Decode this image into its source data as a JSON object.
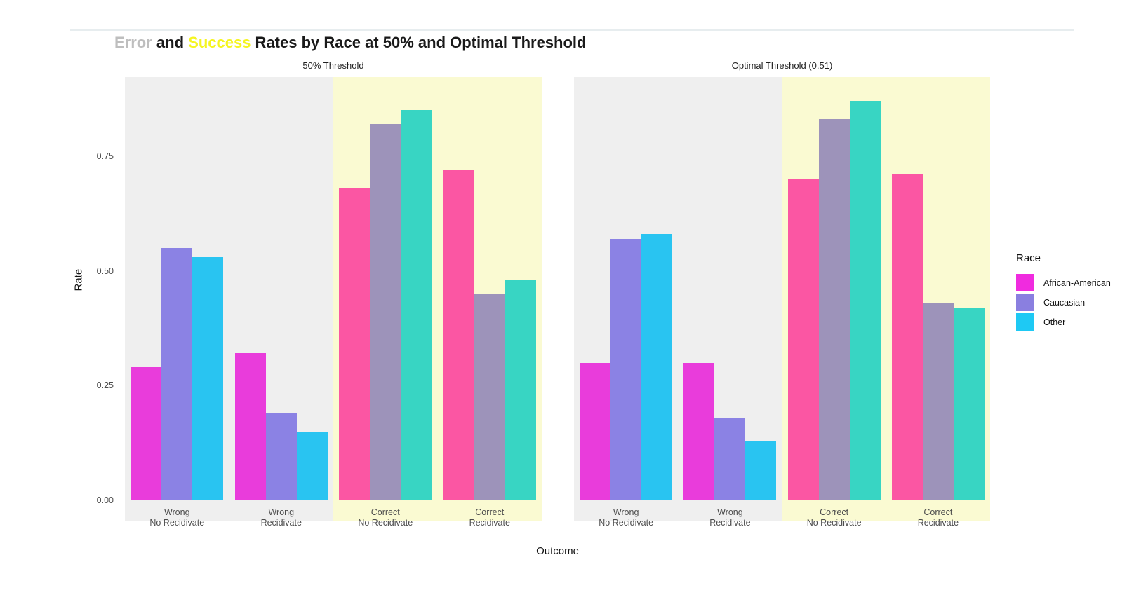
{
  "title": {
    "part_error": "Error",
    "part_and": " and ",
    "part_success": "Success",
    "part_rest": " Rates by Race at 50% and Optimal Threshold"
  },
  "colors": {
    "page_bg": "#FFFFFF",
    "hairline": "#E7EDEF",
    "panel_error_bg": "#EFEFEF",
    "panel_success_bg": "#FAFAD2",
    "title_error": "#BEBEBE",
    "title_success": "#F5F521",
    "title_text": "#1A1A1A",
    "tick_text": "#4D4D4D",
    "bars_error_zone": {
      "African-American": "#E93CDB",
      "Caucasian": "#8B82E4",
      "Other": "#29C4F1"
    },
    "bars_success_zone": {
      "African-American": "#FB56A3",
      "Caucasian": "#9D93BA",
      "Other": "#38D5C3"
    },
    "legend_keys": {
      "African-American": "#F02BDF",
      "Caucasian": "#8A7FE0",
      "Other": "#1EC9F4"
    }
  },
  "chart_data": {
    "type": "bar",
    "title": "Error and Success Rates by Race at 50% and Optimal Threshold",
    "xlabel": "Outcome",
    "ylabel": "Rate",
    "ylim": [
      0,
      0.93
    ],
    "yticks": [
      0,
      0.25,
      0.5,
      0.75
    ],
    "ytick_labels": [
      "0.00",
      "0.25",
      "0.50",
      "0.75"
    ],
    "grid": false,
    "legend_position": "right",
    "categories": [
      "Wrong\nNo Recidivate",
      "Wrong\nRecidivate",
      "Correct\nNo Recidivate",
      "Correct\nRecidivate"
    ],
    "category_zones": [
      "error",
      "error",
      "success",
      "success"
    ],
    "facets": [
      {
        "label": "50% Threshold",
        "series": [
          {
            "name": "African-American",
            "values": [
              0.29,
              0.32,
              0.68,
              0.72
            ]
          },
          {
            "name": "Caucasian",
            "values": [
              0.55,
              0.19,
              0.82,
              0.45
            ]
          },
          {
            "name": "Other",
            "values": [
              0.53,
              0.15,
              0.85,
              0.48
            ]
          }
        ]
      },
      {
        "label": "Optimal Threshold (0.51)",
        "series": [
          {
            "name": "African-American",
            "values": [
              0.3,
              0.3,
              0.7,
              0.71
            ]
          },
          {
            "name": "Caucasian",
            "values": [
              0.57,
              0.18,
              0.83,
              0.43
            ]
          },
          {
            "name": "Other",
            "values": [
              0.58,
              0.13,
              0.87,
              0.42
            ]
          }
        ]
      }
    ],
    "legend": {
      "title": "Race",
      "entries": [
        "African-American",
        "Caucasian",
        "Other"
      ]
    }
  }
}
